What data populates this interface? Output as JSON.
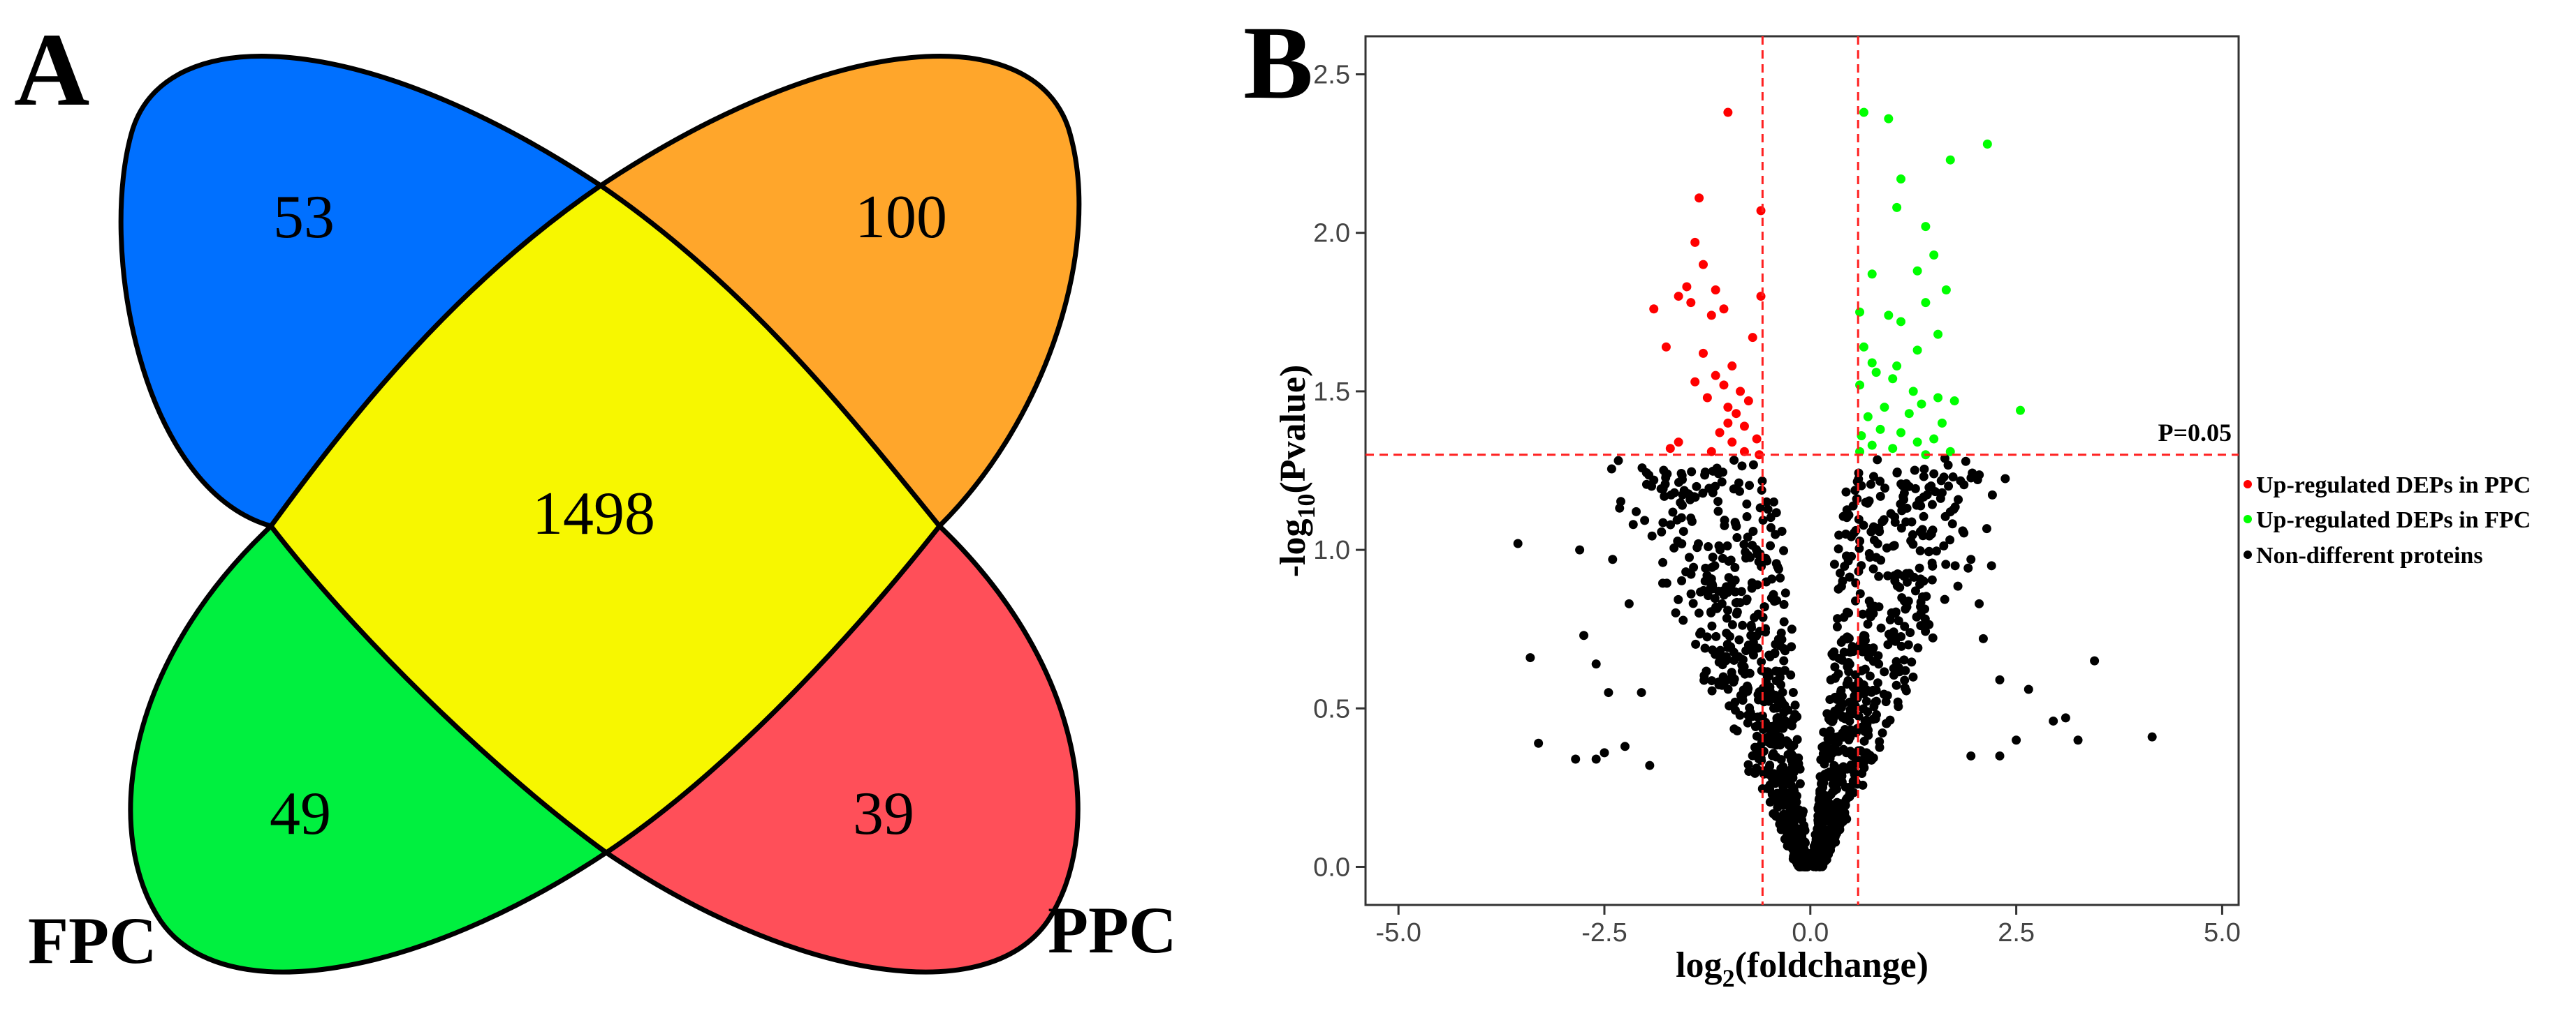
{
  "panel_a": {
    "letter": "A",
    "sets": [
      {
        "name": "FPC"
      },
      {
        "name": "PPC"
      }
    ],
    "regions": {
      "blue": {
        "value": "53",
        "color": "#0070FF"
      },
      "orange": {
        "value": "100",
        "color": "#FFA62B"
      },
      "center": {
        "value": "1498",
        "color": "#F7F700"
      },
      "green": {
        "value": "49",
        "color": "#00F03F"
      },
      "red": {
        "value": "39",
        "color": "#FF4F59"
      }
    }
  },
  "panel_b": {
    "letter": "B",
    "threshold_label": "P=0.05",
    "legend_colors": {
      "red": "#FF0000",
      "green": "#00FF00",
      "black": "#000000"
    }
  },
  "chart_data": {
    "type": "scatter",
    "xlabel_main": "log",
    "xlabel_sub": "2",
    "xlabel_rest": "(foldchange)",
    "ylabel_main": "-log",
    "ylabel_sub": "10",
    "ylabel_rest": "(Pvalue)",
    "xlim": [
      -5.4,
      5.2
    ],
    "ylim": [
      -0.12,
      2.62
    ],
    "x_ticks": [
      "-5.0",
      "-2.5",
      "0.0",
      "2.5",
      "5.0"
    ],
    "y_ticks": [
      "0.0",
      "0.5",
      "1.0",
      "1.5",
      "2.0",
      "2.5"
    ],
    "vertical_cutoffs": [
      -0.58,
      0.58
    ],
    "horizontal_cutoff": 1.3,
    "series": [
      {
        "name": "Up-regulated DEPs in PPC",
        "color": "#FF0000",
        "points": [
          [
            -1.0,
            2.38
          ],
          [
            -1.35,
            2.11
          ],
          [
            -0.6,
            2.07
          ],
          [
            -1.4,
            1.97
          ],
          [
            -1.3,
            1.9
          ],
          [
            -1.9,
            1.76
          ],
          [
            -1.5,
            1.83
          ],
          [
            -1.45,
            1.78
          ],
          [
            -1.6,
            1.8
          ],
          [
            -1.15,
            1.82
          ],
          [
            -1.05,
            1.76
          ],
          [
            -0.6,
            1.8
          ],
          [
            -1.75,
            1.64
          ],
          [
            -1.2,
            1.74
          ],
          [
            -0.7,
            1.67
          ],
          [
            -1.3,
            1.62
          ],
          [
            -0.95,
            1.58
          ],
          [
            -1.4,
            1.53
          ],
          [
            -1.15,
            1.55
          ],
          [
            -1.05,
            1.52
          ],
          [
            -0.85,
            1.5
          ],
          [
            -1.25,
            1.48
          ],
          [
            -0.75,
            1.47
          ],
          [
            -0.9,
            1.43
          ],
          [
            -1.0,
            1.4
          ],
          [
            -1.1,
            1.37
          ],
          [
            -0.95,
            1.34
          ],
          [
            -0.65,
            1.35
          ],
          [
            -1.6,
            1.34
          ],
          [
            -1.7,
            1.32
          ],
          [
            -0.8,
            1.31
          ],
          [
            -1.2,
            1.31
          ],
          [
            -0.62,
            1.3
          ],
          [
            -1.0,
            1.45
          ],
          [
            -0.8,
            1.39
          ]
        ]
      },
      {
        "name": "Up-regulated DEPs in FPC",
        "color": "#00FF00",
        "points": [
          [
            0.65,
            2.38
          ],
          [
            0.95,
            2.36
          ],
          [
            2.15,
            2.28
          ],
          [
            1.7,
            2.23
          ],
          [
            1.1,
            2.17
          ],
          [
            1.05,
            2.08
          ],
          [
            1.4,
            2.02
          ],
          [
            1.5,
            1.93
          ],
          [
            1.3,
            1.88
          ],
          [
            0.75,
            1.87
          ],
          [
            1.65,
            1.82
          ],
          [
            1.4,
            1.78
          ],
          [
            0.6,
            1.75
          ],
          [
            0.95,
            1.74
          ],
          [
            1.1,
            1.72
          ],
          [
            1.55,
            1.68
          ],
          [
            0.65,
            1.64
          ],
          [
            1.3,
            1.63
          ],
          [
            0.75,
            1.59
          ],
          [
            1.05,
            1.58
          ],
          [
            0.8,
            1.56
          ],
          [
            1.0,
            1.54
          ],
          [
            0.6,
            1.52
          ],
          [
            1.25,
            1.5
          ],
          [
            1.55,
            1.48
          ],
          [
            1.75,
            1.47
          ],
          [
            1.35,
            1.46
          ],
          [
            0.9,
            1.45
          ],
          [
            2.55,
            1.44
          ],
          [
            1.2,
            1.43
          ],
          [
            0.7,
            1.42
          ],
          [
            1.6,
            1.4
          ],
          [
            0.85,
            1.38
          ],
          [
            1.1,
            1.37
          ],
          [
            0.62,
            1.36
          ],
          [
            1.5,
            1.35
          ],
          [
            1.3,
            1.34
          ],
          [
            0.75,
            1.33
          ],
          [
            1.0,
            1.32
          ],
          [
            1.7,
            1.31
          ],
          [
            0.6,
            1.31
          ],
          [
            1.4,
            1.3
          ]
        ]
      },
      {
        "name": "Non-different proteins",
        "color": "#000000",
        "points": [
          [
            -3.55,
            1.02
          ],
          [
            -3.4,
            0.66
          ],
          [
            -3.3,
            0.39
          ],
          [
            -2.85,
            0.34
          ],
          [
            -2.6,
            0.34
          ],
          [
            -2.5,
            0.36
          ],
          [
            -2.25,
            0.38
          ],
          [
            -1.95,
            0.32
          ],
          [
            -2.4,
            0.97
          ],
          [
            -2.2,
            0.83
          ],
          [
            -2.8,
            1.0
          ],
          [
            -2.15,
            1.08
          ],
          [
            -1.9,
            1.22
          ],
          [
            -1.45,
            1.17
          ],
          [
            -1.65,
            1.18
          ],
          [
            -2.45,
            0.55
          ],
          [
            -2.05,
            0.55
          ],
          [
            -2.75,
            0.73
          ],
          [
            -2.6,
            0.64
          ],
          [
            3.45,
            0.65
          ],
          [
            4.15,
            0.41
          ],
          [
            3.25,
            0.4
          ],
          [
            3.1,
            0.47
          ],
          [
            2.95,
            0.46
          ],
          [
            2.65,
            0.56
          ],
          [
            2.5,
            0.4
          ],
          [
            2.3,
            0.35
          ],
          [
            1.95,
            0.35
          ],
          [
            2.3,
            0.59
          ],
          [
            2.05,
            0.83
          ],
          [
            2.1,
            0.72
          ],
          [
            1.85,
            1.06
          ],
          [
            1.95,
            0.97
          ],
          [
            1.6,
            1.18
          ],
          [
            1.5,
            1.24
          ],
          [
            1.2,
            1.2
          ],
          [
            1.7,
            1.12
          ],
          [
            2.2,
            0.95
          ]
        ],
        "cluster": {
          "count": 1400,
          "x_spread": 0.55,
          "y_max": 1.29
        }
      }
    ]
  }
}
